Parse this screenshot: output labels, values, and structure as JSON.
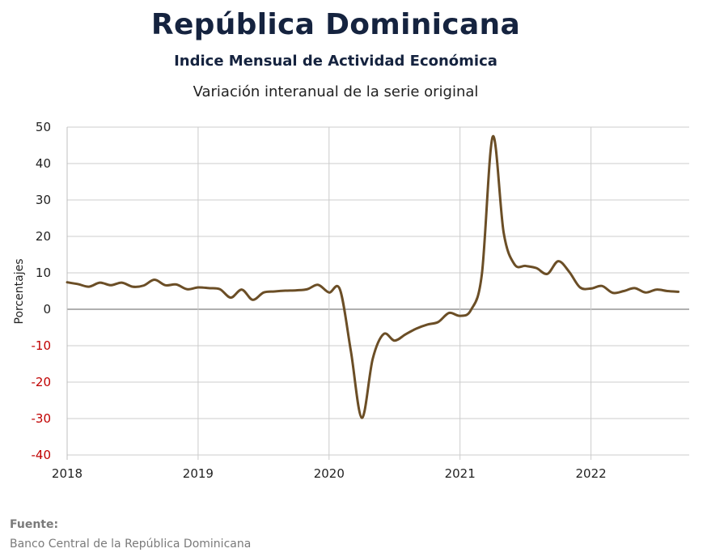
{
  "header": {
    "title": "República Dominicana",
    "subtitle": "Indice Mensual de  Actividad Económica",
    "subtitle2": "Variación interanual de la serie original"
  },
  "footer": {
    "label": "Fuente:",
    "source": "Banco Central de la República Dominicana"
  },
  "colors": {
    "line": "#6b4e26",
    "negative_ticks": "#c00000",
    "positive_ticks": "#222222",
    "grid": "#cccccc",
    "zero_line": "#808080"
  },
  "chart_data": {
    "type": "line",
    "title": "",
    "xlabel": "",
    "ylabel": "Porcentajes",
    "xlim": [
      "2018-01",
      "2022-10"
    ],
    "ylim": [
      -40,
      50
    ],
    "yticks": [
      50,
      40,
      30,
      20,
      10,
      0,
      -10,
      -20,
      -30,
      -40
    ],
    "xticks": [
      "2018",
      "2019",
      "2020",
      "2021",
      "2022"
    ],
    "grid": true,
    "legend": "none",
    "x": [
      "2018-01",
      "2018-02",
      "2018-03",
      "2018-04",
      "2018-05",
      "2018-06",
      "2018-07",
      "2018-08",
      "2018-09",
      "2018-10",
      "2018-11",
      "2018-12",
      "2019-01",
      "2019-02",
      "2019-03",
      "2019-04",
      "2019-05",
      "2019-06",
      "2019-07",
      "2019-08",
      "2019-09",
      "2019-10",
      "2019-11",
      "2019-12",
      "2020-01",
      "2020-02",
      "2020-03",
      "2020-04",
      "2020-05",
      "2020-06",
      "2020-07",
      "2020-08",
      "2020-09",
      "2020-10",
      "2020-11",
      "2020-12",
      "2021-01",
      "2021-02",
      "2021-03",
      "2021-04",
      "2021-05",
      "2021-06",
      "2021-07",
      "2021-08",
      "2021-09",
      "2021-10",
      "2021-11",
      "2021-12",
      "2022-01",
      "2022-02",
      "2022-03",
      "2022-04",
      "2022-05",
      "2022-06",
      "2022-07",
      "2022-08",
      "2022-09"
    ],
    "values": [
      7.4,
      6.9,
      6.2,
      7.3,
      6.6,
      7.3,
      6.2,
      6.5,
      8.1,
      6.6,
      6.8,
      5.5,
      6.0,
      5.8,
      5.5,
      3.2,
      5.4,
      2.6,
      4.6,
      4.9,
      5.1,
      5.2,
      5.5,
      6.7,
      4.6,
      5.4,
      -11.5,
      -29.8,
      -13.6,
      -6.8,
      -8.6,
      -6.9,
      -5.3,
      -4.2,
      -3.5,
      -1.0,
      -1.8,
      -0.2,
      9.6,
      47.4,
      21.0,
      12.3,
      11.9,
      11.3,
      9.7,
      13.2,
      10.3,
      6.0,
      5.7,
      6.4,
      4.5,
      5.0,
      5.8,
      4.6,
      5.4,
      5.0,
      4.8
    ]
  }
}
